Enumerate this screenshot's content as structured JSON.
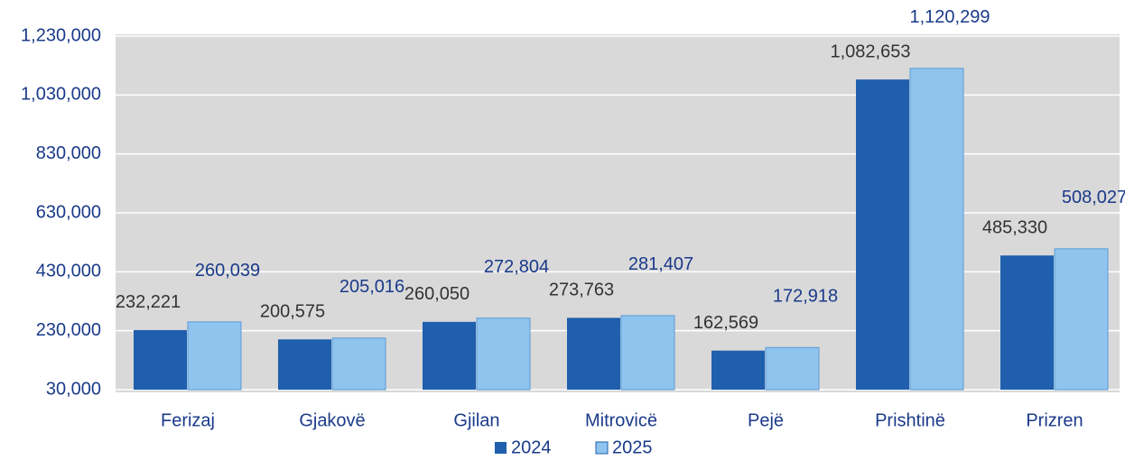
{
  "chart_data": {
    "type": "bar",
    "categories": [
      "Ferizaj",
      "Gjakovë",
      "Gjilan",
      "Mitrovicë",
      "Pejë",
      "Prishtinë",
      "Prizren"
    ],
    "series": [
      {
        "name": "2024",
        "color": "#1f5fad",
        "values": [
          232221,
          200575,
          260050,
          273763,
          162569,
          1082653,
          485330
        ],
        "value_labels": [
          "232,221",
          "200,575",
          "260,050",
          "273,763",
          "162,569",
          "1,082,653",
          "485,330"
        ]
      },
      {
        "name": "2025",
        "color": "#8fc4ee",
        "values": [
          260039,
          205016,
          272804,
          281407,
          172918,
          1120299,
          508027
        ],
        "value_labels": [
          "260,039",
          "205,016",
          "272,804",
          "281,407",
          "172,918",
          "1,120,299",
          "508,027"
        ]
      }
    ],
    "ylim": [
      30000,
      1230000
    ],
    "yticks": [
      {
        "value": 30000,
        "label": "30,000"
      },
      {
        "value": 230000,
        "label": "230,000"
      },
      {
        "value": 430000,
        "label": "430,000"
      },
      {
        "value": 630000,
        "label": "630,000"
      },
      {
        "value": 830000,
        "label": "830,000"
      },
      {
        "value": 1030000,
        "label": "1,030,000"
      },
      {
        "value": 1230000,
        "label": "1,230,000"
      }
    ],
    "grid": true,
    "legend": "bottom"
  }
}
